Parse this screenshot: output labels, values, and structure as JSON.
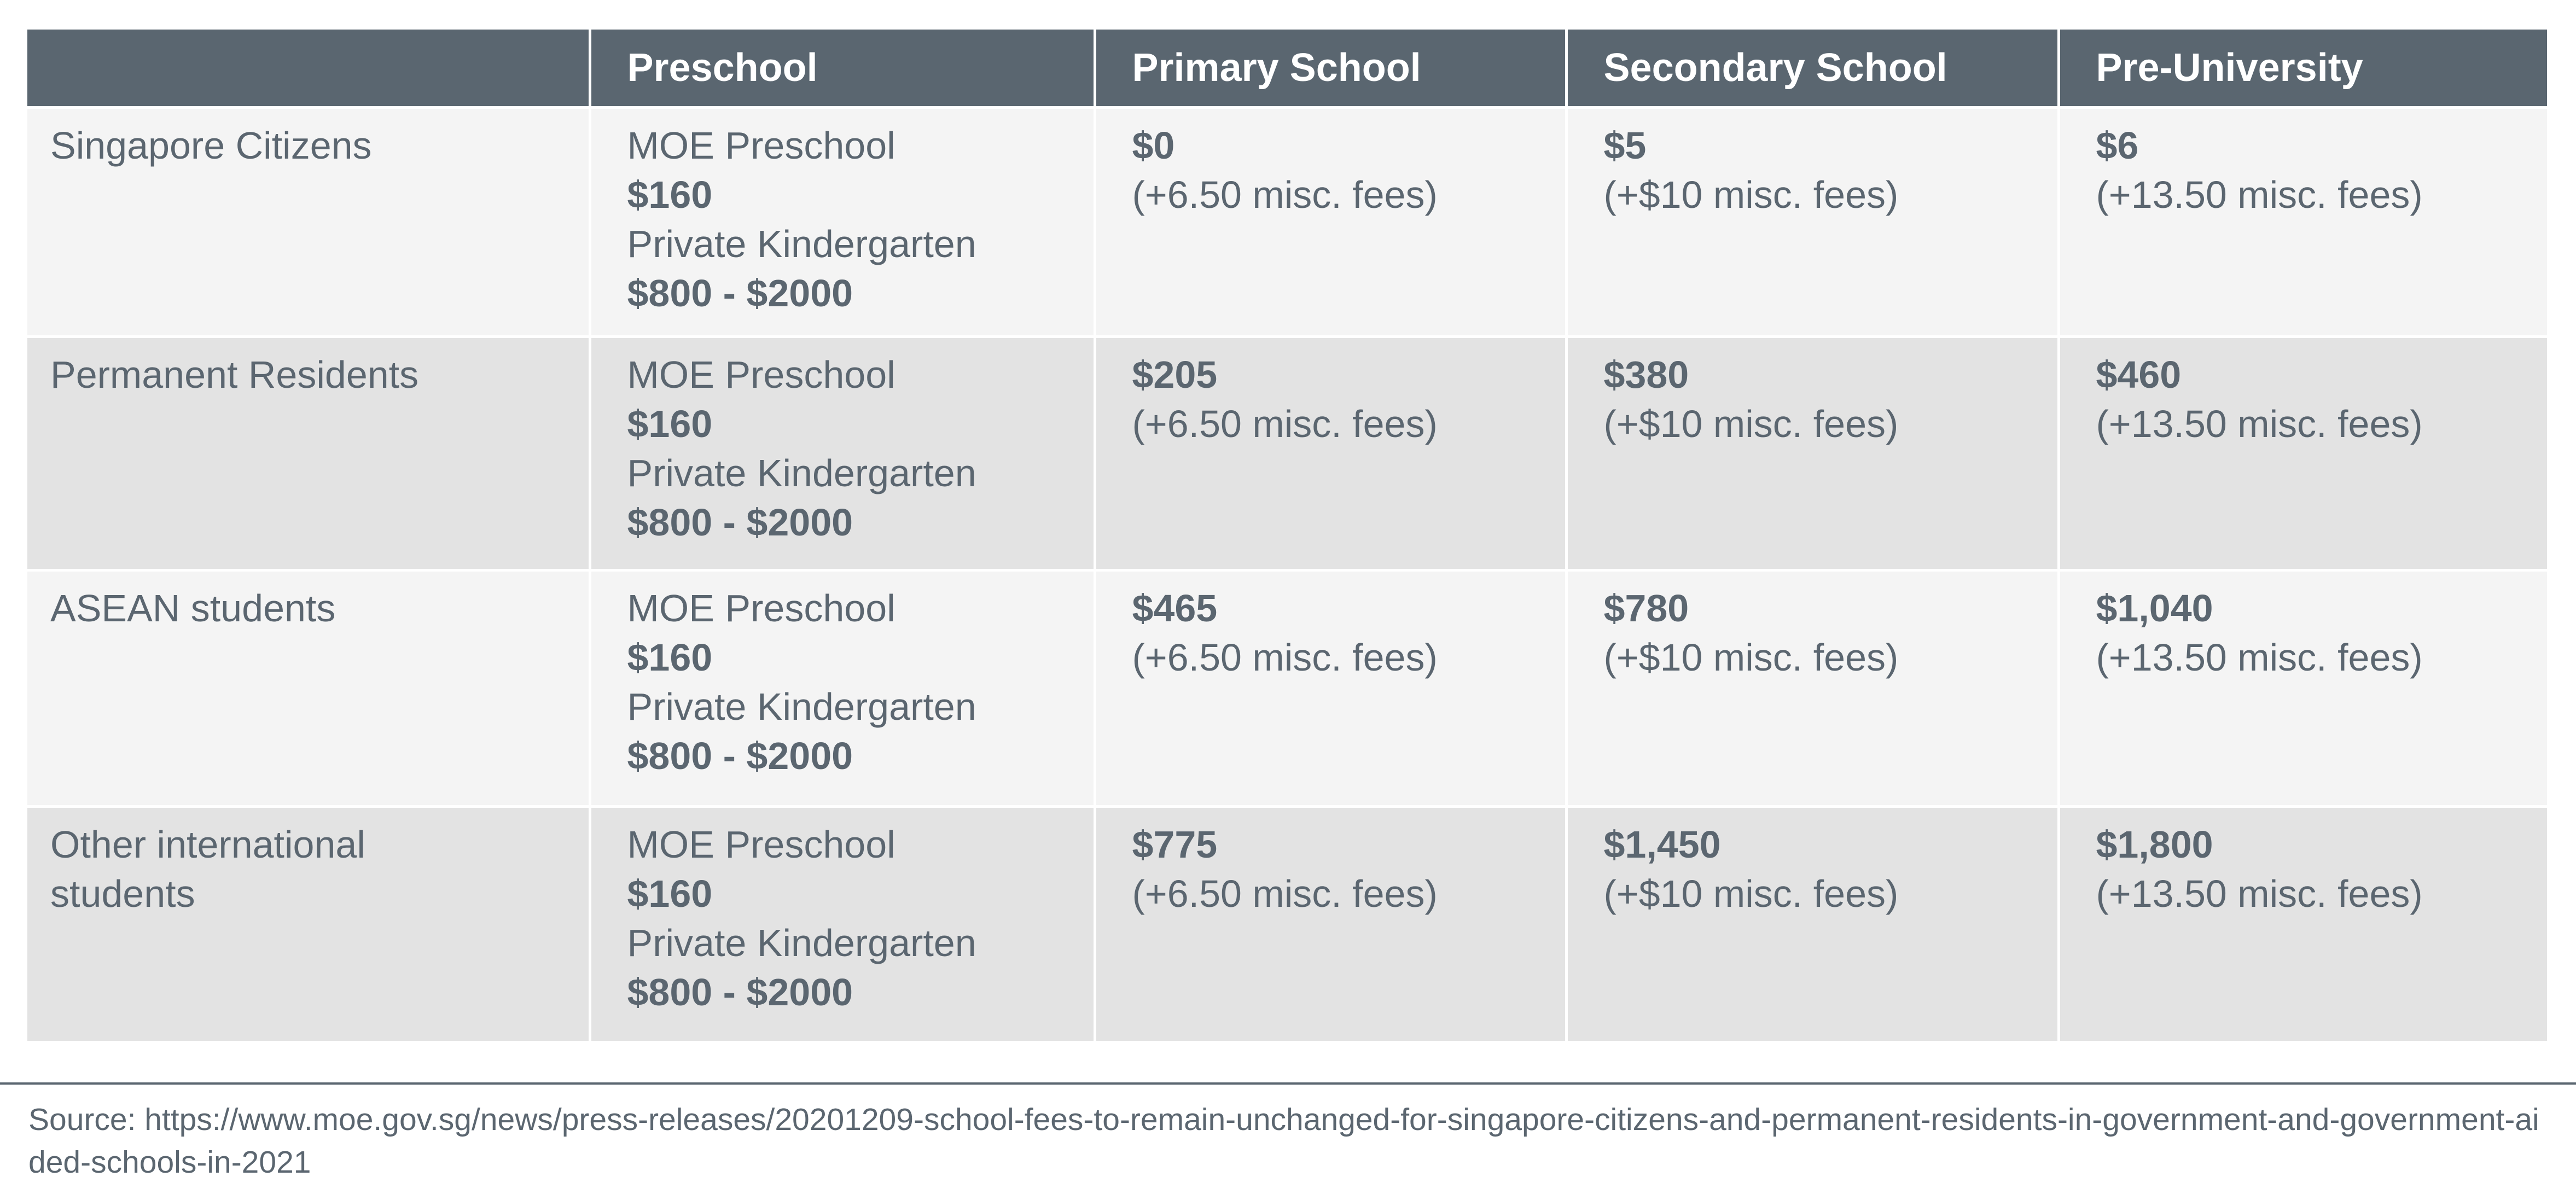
{
  "table": {
    "headers": [
      "",
      "Preschool",
      "Primary School",
      "Secondary School",
      "Pre-University"
    ],
    "rows": [
      {
        "label": "Singapore Citizens",
        "preschool": {
          "moe_label": "MOE Preschool",
          "moe_fee": "$160",
          "private_label": "Private Kindergarten",
          "private_fee": "$800 - $2000"
        },
        "primary": {
          "fee": "$0",
          "misc": "(+6.50 misc. fees)"
        },
        "secondary": {
          "fee": "$5",
          "misc": "(+$10 misc. fees)"
        },
        "pre_university": {
          "fee": "$6",
          "misc": "(+13.50 misc. fees)"
        }
      },
      {
        "label": "Permanent Residents",
        "preschool": {
          "moe_label": "MOE Preschool",
          "moe_fee": "$160",
          "private_label": "Private Kindergarten",
          "private_fee": "$800 - $2000"
        },
        "primary": {
          "fee": "$205",
          "misc": "(+6.50 misc. fees)"
        },
        "secondary": {
          "fee": "$380",
          "misc": "(+$10 misc. fees)"
        },
        "pre_university": {
          "fee": "$460",
          "misc": "(+13.50 misc. fees)"
        }
      },
      {
        "label": "ASEAN students",
        "preschool": {
          "moe_label": "MOE Preschool",
          "moe_fee": "$160",
          "private_label": "Private Kindergarten",
          "private_fee": "$800 - $2000"
        },
        "primary": {
          "fee": "$465",
          "misc": "(+6.50 misc. fees)"
        },
        "secondary": {
          "fee": "$780",
          "misc": "(+$10 misc. fees)"
        },
        "pre_university": {
          "fee": "$1,040",
          "misc": "(+13.50 misc. fees)"
        }
      },
      {
        "label": "Other international students",
        "preschool": {
          "moe_label": "MOE Preschool",
          "moe_fee": "$160",
          "private_label": "Private Kindergarten",
          "private_fee": "$800 - $2000"
        },
        "primary": {
          "fee": "$775",
          "misc": "(+6.50 misc. fees)"
        },
        "secondary": {
          "fee": "$1,450",
          "misc": "(+$10 misc. fees)"
        },
        "pre_university": {
          "fee": "$1,800",
          "misc": "(+13.50 misc. fees)"
        }
      }
    ]
  },
  "source": "Source: https://www.moe.gov.sg/news/press-releases/20201209-school-fees-to-remain-unchanged-for-singapore-citizens-and-permanent-residents-in-government-and-government-aided-schools-in-2021",
  "colors": {
    "header_bg": "#5a6670",
    "header_text": "#ffffff",
    "body_text": "#5b6670",
    "row_light": "#f4f4f4",
    "row_dark": "#e3e3e3"
  }
}
